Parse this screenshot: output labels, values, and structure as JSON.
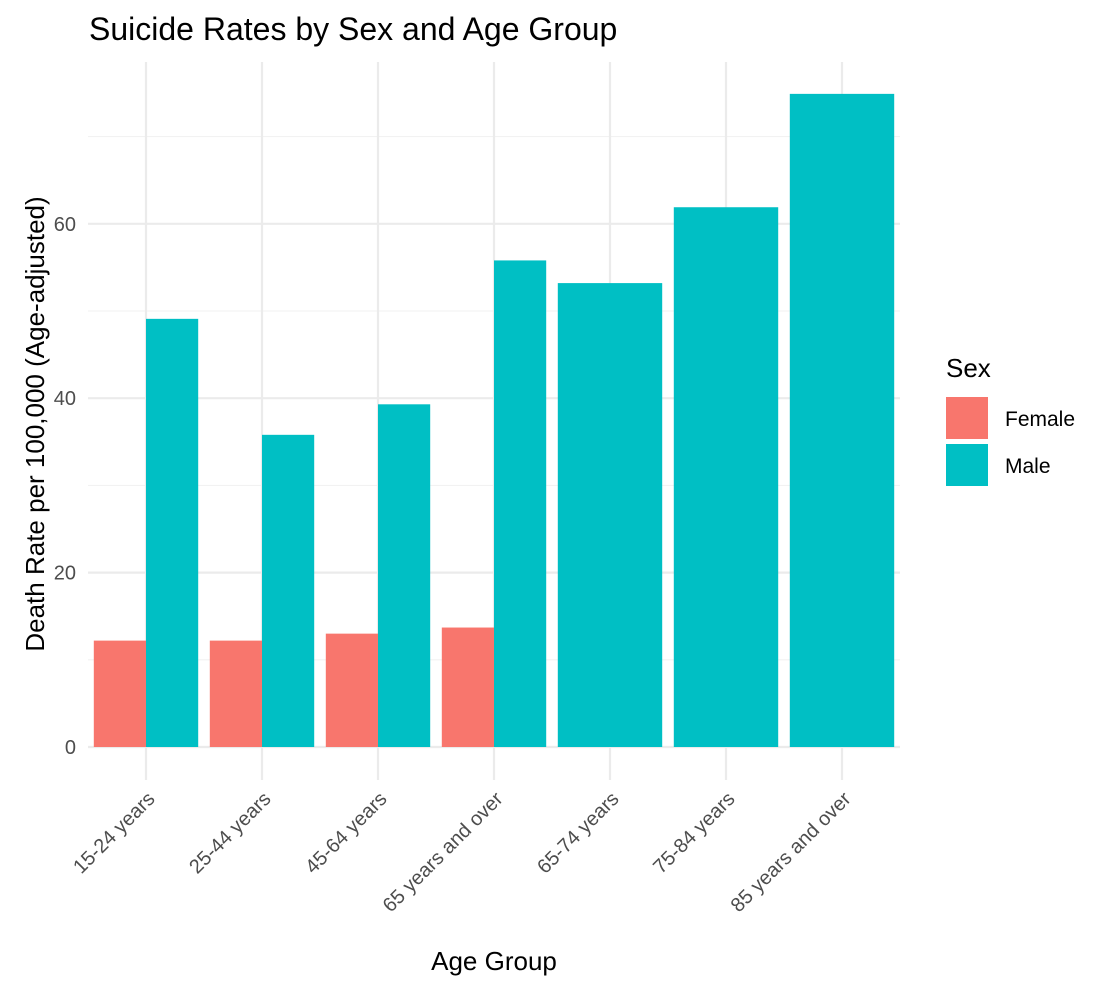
{
  "chart_data": {
    "type": "bar",
    "title": "Suicide Rates by Sex and Age Group",
    "xlabel": "Age Group",
    "ylabel": "Death Rate per 100,000 (Age-adjusted)",
    "categories": [
      "15-24 years",
      "25-44 years",
      "45-64 years",
      "65 years and over",
      "65-74 years",
      "75-84 years",
      "85 years and over"
    ],
    "series": [
      {
        "name": "Female",
        "color": "#F8766D",
        "values": [
          12.2,
          12.2,
          13.0,
          13.7,
          null,
          null,
          null
        ]
      },
      {
        "name": "Male",
        "color": "#00BFC4",
        "values": [
          49.1,
          35.8,
          39.3,
          55.8,
          53.2,
          61.9,
          74.9
        ]
      }
    ],
    "ylim": [
      0,
      75
    ],
    "yticks": [
      0,
      20,
      40,
      60
    ],
    "grid": true,
    "legend": {
      "title": "Sex",
      "position": "right"
    }
  }
}
